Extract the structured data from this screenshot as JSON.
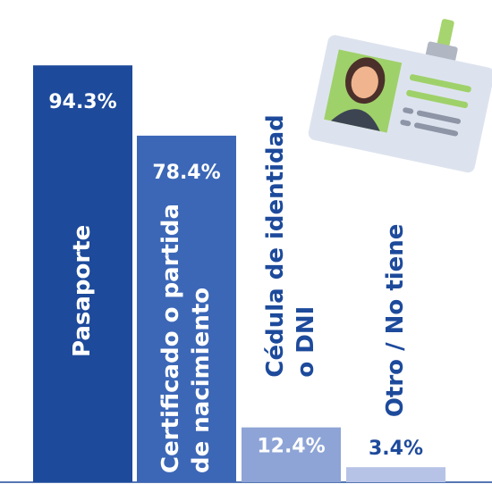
{
  "chart_data": {
    "type": "bar",
    "categories": [
      [
        "Pasaporte"
      ],
      [
        "Certificado o partida",
        "de nacimiento"
      ],
      [
        "Cédula de identidad",
        "o DNI"
      ],
      [
        "Otro / No tiene"
      ]
    ],
    "values": [
      94.3,
      78.4,
      12.4,
      3.4
    ],
    "value_labels": [
      "94.3%",
      "78.4%",
      "12.4%",
      "3.4%"
    ],
    "colors": [
      "#1d4a9b",
      "#3c67b7",
      "#8ea4d6",
      "#b7c3e6"
    ]
  }
}
